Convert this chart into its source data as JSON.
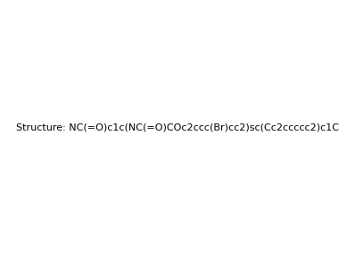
{
  "smiles": "NC(=O)c1c(NC(=O)COc2ccc(Br)cc2)sc(Cc2ccccc2)c1C",
  "title": "",
  "background_color": "#ffffff",
  "line_color": "#000000",
  "figsize": [
    3.98,
    2.84
  ],
  "dpi": 100
}
